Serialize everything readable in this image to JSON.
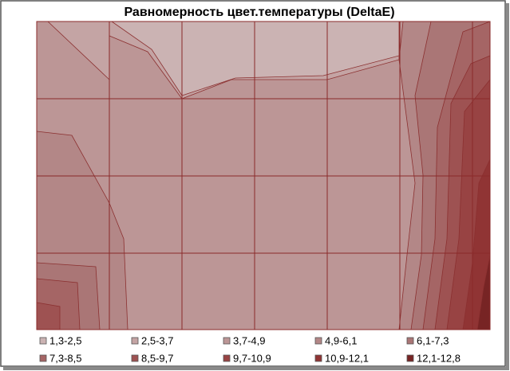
{
  "chart_data": {
    "type": "contour",
    "title": "Равномерность цвет.температуры (DeltaE)",
    "series": [
      {
        "name": "1,3-2,5",
        "color": "#cbb3b3"
      },
      {
        "name": "2,5-3,7",
        "color": "#c4a4a4"
      },
      {
        "name": "3,7-4,9",
        "color": "#bc9696"
      },
      {
        "name": "4,9-6,1",
        "color": "#b38787"
      },
      {
        "name": "6,1-7,3",
        "color": "#aa7676"
      },
      {
        "name": "7,3-8,5",
        "color": "#a56565"
      },
      {
        "name": "8,5-9,7",
        "color": "#9e5252"
      },
      {
        "name": "9,7-10,9",
        "color": "#984343"
      },
      {
        "name": "10,9-12,1",
        "color": "#903434"
      },
      {
        "name": "12,1-12,8",
        "color": "#772424"
      }
    ],
    "grid": true
  }
}
